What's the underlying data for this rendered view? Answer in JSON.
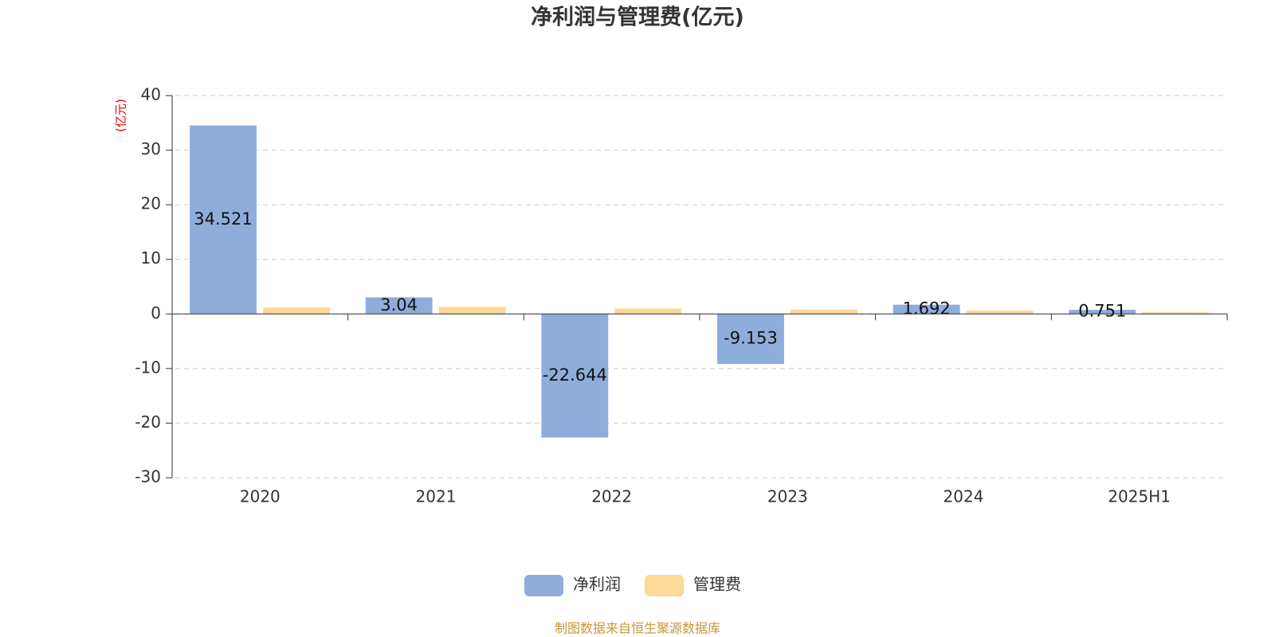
{
  "chart_data": {
    "type": "bar",
    "title": "净利润与管理费(亿元)",
    "y_label": "(亿元)",
    "source": "制图数据来自恒生聚源数据库",
    "categories": [
      "2020",
      "2021",
      "2022",
      "2023",
      "2024",
      "2025H1"
    ],
    "series": [
      {
        "name": "净利润",
        "color": "#8eadda",
        "values": [
          34.521,
          3.04,
          -22.644,
          -9.153,
          1.692,
          0.751
        ]
      },
      {
        "name": "管理费",
        "color": "#fcd995",
        "values": [
          1.2,
          1.3,
          1.0,
          0.8,
          0.6,
          0.3
        ]
      }
    ],
    "ylim": [
      -30,
      40
    ],
    "yticks": [
      -30,
      -20,
      -10,
      0,
      10,
      20,
      30,
      40
    ],
    "grid": true,
    "legend": "bottom"
  }
}
